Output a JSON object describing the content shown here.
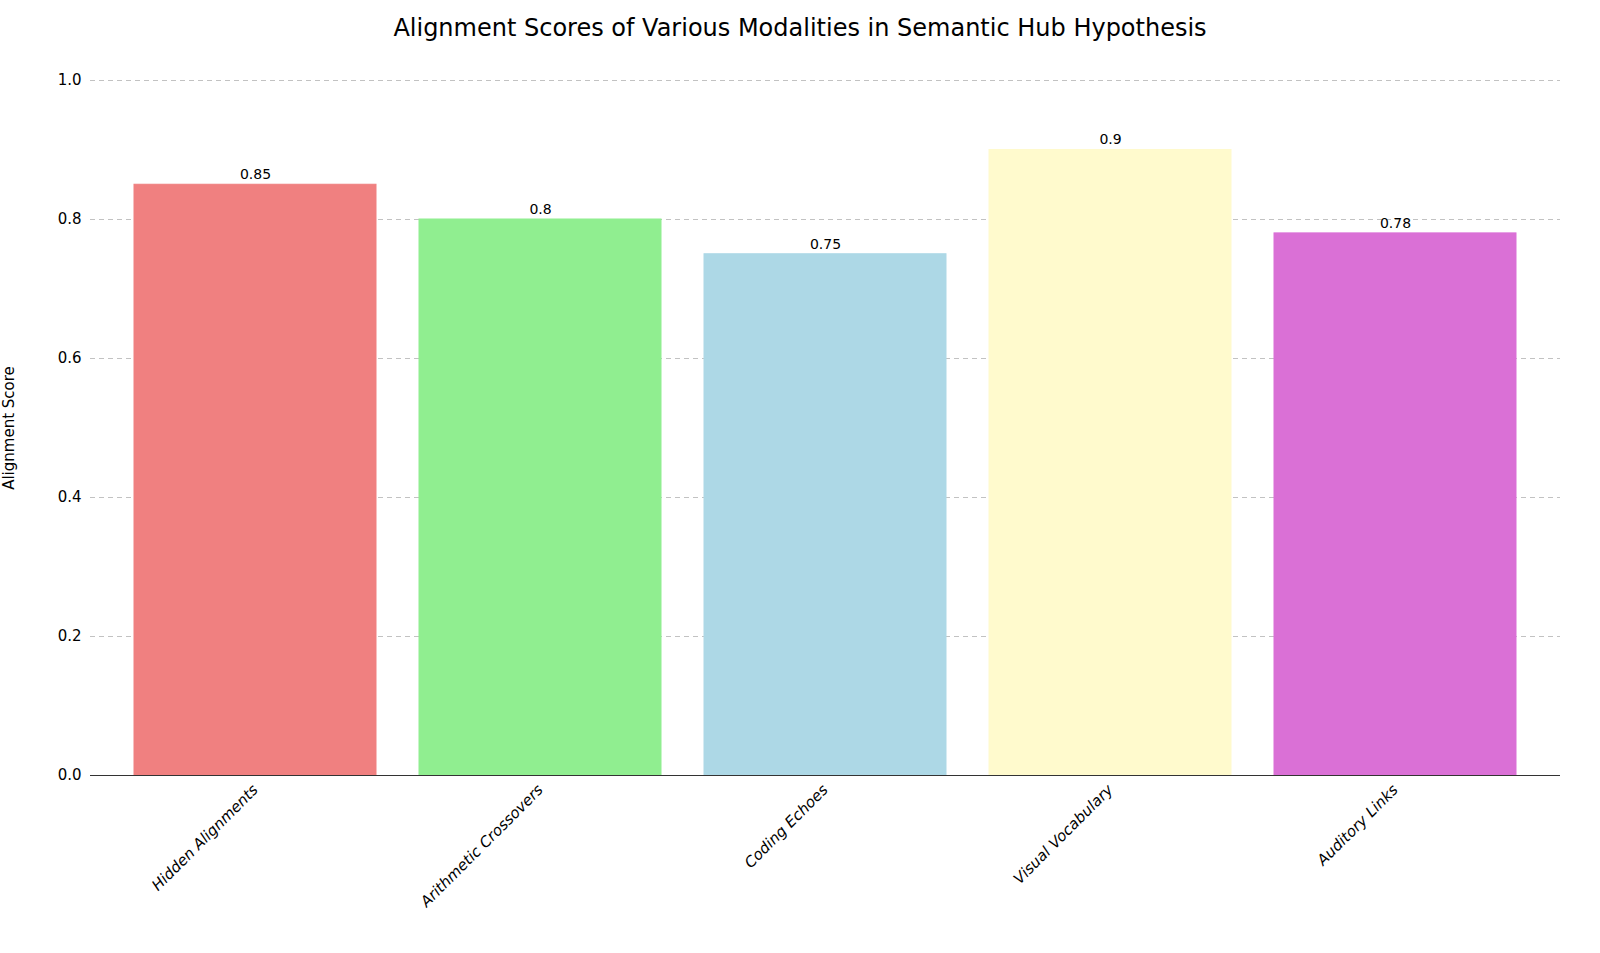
{
  "chart_data": {
    "type": "bar",
    "title": "Alignment Scores of Various Modalities in Semantic Hub Hypothesis",
    "categories": [
      "Hidden Alignments",
      "Arithmetic Crossovers",
      "Coding Echoes",
      "Visual Vocabulary",
      "Auditory Links"
    ],
    "values": [
      0.85,
      0.8,
      0.75,
      0.9,
      0.78
    ],
    "colors": [
      "#F08080",
      "#90EE90",
      "#ADD8E6",
      "#FFFACD",
      "#DA70D6"
    ],
    "y_label": "Alignment Score",
    "ylim": [
      0.0,
      1.0
    ],
    "yticks": [
      {
        "value": 0,
        "label": "0.0"
      },
      0.2,
      0.4,
      0.6,
      0.8,
      {
        "value": 1,
        "label": "1.0"
      }
    ],
    "grid": true,
    "data_labels": true
  }
}
